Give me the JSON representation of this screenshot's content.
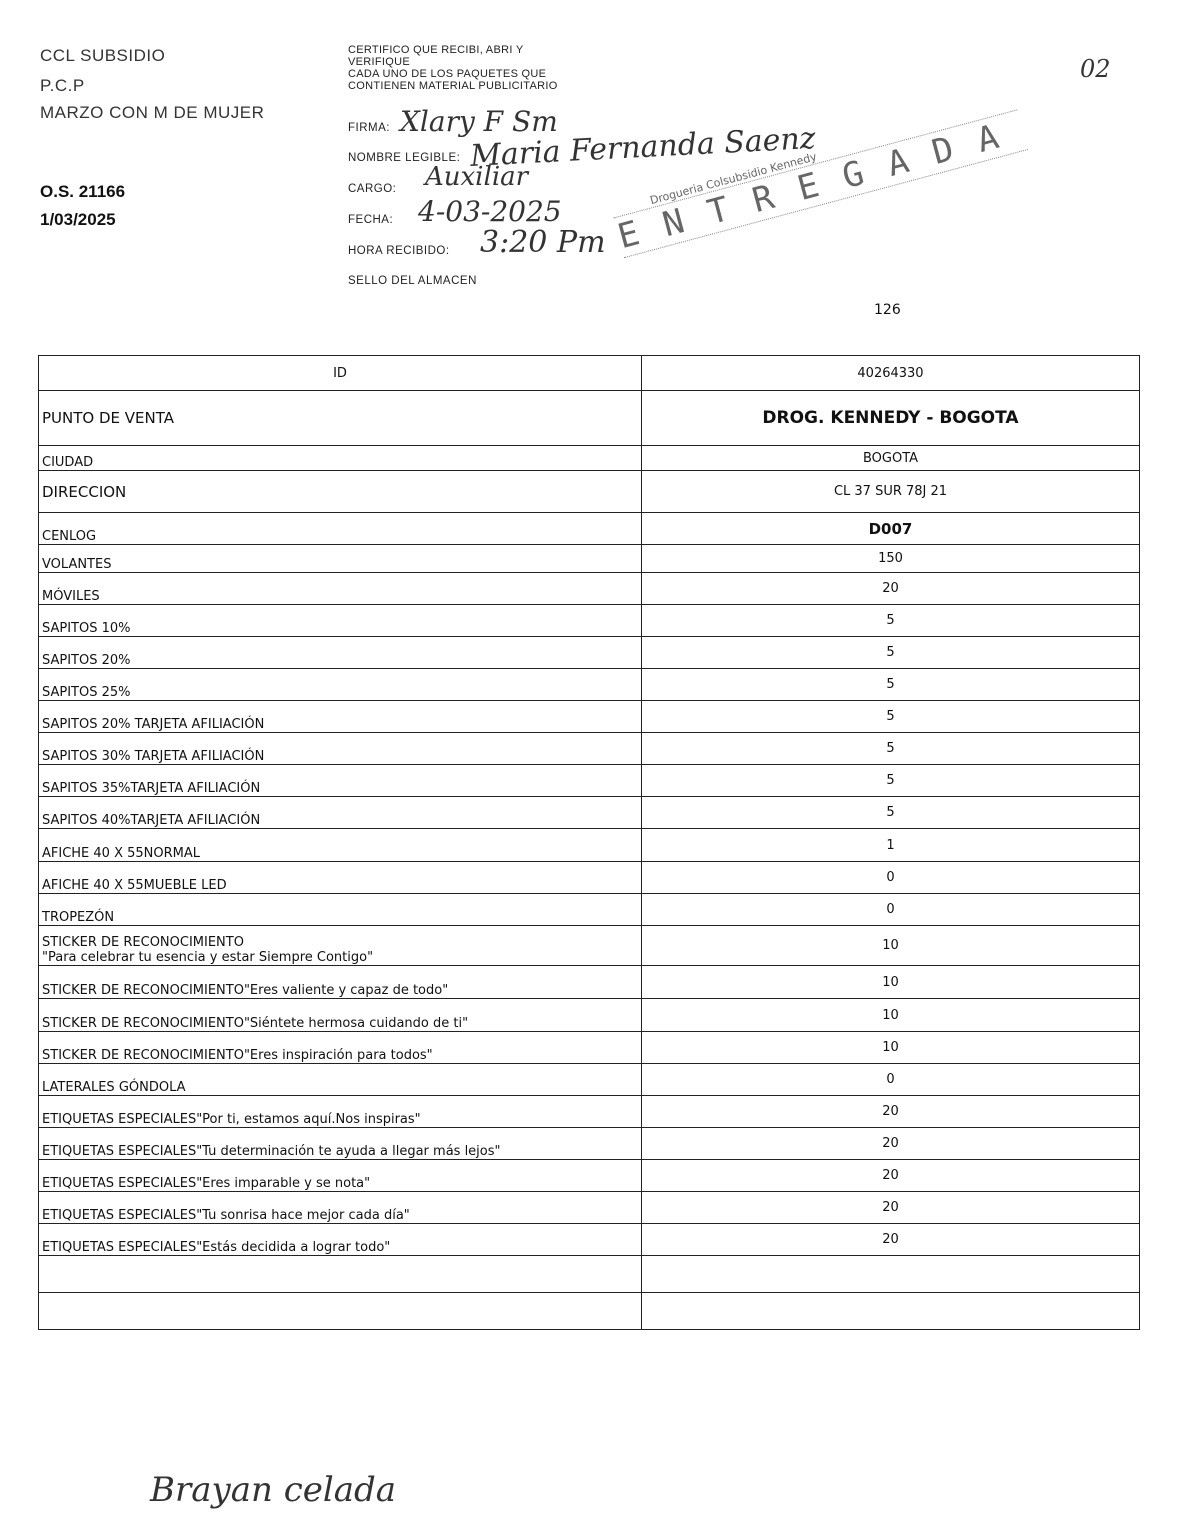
{
  "header": {
    "company": "CCL SUBSIDIO",
    "program": "P.C.P",
    "campaign": "MARZO CON M DE MUJER",
    "order": "O.S. 21166",
    "date": "1/03/2025",
    "page_mark": "02",
    "count": "126"
  },
  "certification": {
    "text_lines": [
      "CERTIFICO QUE RECIBI, ABRI Y",
      "VERIFIQUE",
      "CADA UNO DE LOS PAQUETES QUE",
      "CONTIENEN MATERIAL PUBLICITARIO"
    ],
    "firma_label": "FIRMA:",
    "nombre_label": "NOMBRE LEGIBLE:",
    "cargo_label": "CARGO:",
    "fecha_label": "FECHA:",
    "hora_label": "HORA RECIBIDO:",
    "sello_label": "SELLO DEL ALMACEN",
    "firma_value": "Xlary F Sm",
    "nombre_value": "Maria Fernanda Saenz",
    "cargo_value": "Auxiliar",
    "fecha_value": "4-03-2025",
    "hora_value": "3:20 Pm"
  },
  "stamp": {
    "line1": "Drogueria Colsubsidio Kennedy",
    "text": "ENTREGADA"
  },
  "table": {
    "rows": [
      {
        "label": "ID",
        "value": "40264330"
      },
      {
        "label": "PUNTO DE VENTA",
        "value": "DROG. KENNEDY - BOGOTA"
      },
      {
        "label": "CIUDAD",
        "value": "BOGOTA"
      },
      {
        "label": "DIRECCION",
        "value": "CL 37 SUR 78J 21"
      },
      {
        "label": "CENLOG",
        "value": "D007"
      },
      {
        "label": "VOLANTES",
        "value": "150"
      },
      {
        "label": "MÓVILES",
        "value": "20"
      },
      {
        "label": "SAPITOS 10%",
        "value": "5"
      },
      {
        "label": "SAPITOS 20%",
        "value": "5"
      },
      {
        "label": "SAPITOS 25%",
        "value": "5"
      },
      {
        "label": "SAPITOS 20% TARJETA AFILIACIÓN",
        "value": "5"
      },
      {
        "label": "SAPITOS 30% TARJETA AFILIACIÓN",
        "value": "5"
      },
      {
        "label": "SAPITOS 35%TARJETA AFILIACIÓN",
        "value": "5"
      },
      {
        "label": "SAPITOS 40%TARJETA AFILIACIÓN",
        "value": "5"
      },
      {
        "label": "AFICHE 40 X 55NORMAL",
        "value": "1"
      },
      {
        "label": "AFICHE 40 X 55MUEBLE LED",
        "value": "0"
      },
      {
        "label": "TROPEZÓN",
        "value": "0"
      },
      {
        "label": "STICKER DE RECONOCIMIENTO\n\"Para celebrar tu esencia y estar Siempre Contigo\"",
        "value": "10"
      },
      {
        "label": "STICKER DE RECONOCIMIENTO\"Eres valiente y capaz de todo\"",
        "value": "10"
      },
      {
        "label": "STICKER DE RECONOCIMIENTO\"Siéntete hermosa cuidando de ti\"",
        "value": "10"
      },
      {
        "label": "STICKER DE RECONOCIMIENTO\"Eres inspiración para todos\"",
        "value": "10"
      },
      {
        "label": "LATERALES GÓNDOLA",
        "value": "0"
      },
      {
        "label": "ETIQUETAS ESPECIALES\"Por ti, estamos aquí.Nos inspiras\"",
        "value": "20"
      },
      {
        "label": "ETIQUETAS ESPECIALES\"Tu determinación te ayuda a llegar más lejos\"",
        "value": "20"
      },
      {
        "label": "ETIQUETAS ESPECIALES\"Eres imparable y se nota\"",
        "value": "20"
      },
      {
        "label": "ETIQUETAS ESPECIALES\"Tu sonrisa hace mejor cada día\"",
        "value": "20"
      },
      {
        "label": "ETIQUETAS ESPECIALES\"Estás decidida a lograr todo\"",
        "value": "20"
      },
      {
        "label": "",
        "value": ""
      },
      {
        "label": "",
        "value": ""
      }
    ]
  },
  "footer": {
    "handwritten_name": "Brayan celada"
  }
}
